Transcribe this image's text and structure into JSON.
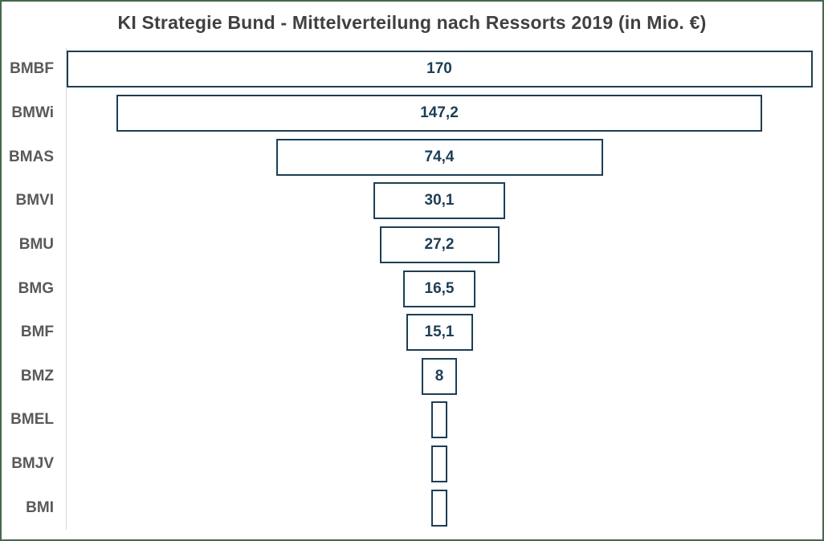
{
  "title": "KI Strategie Bund - Mittelverteilung nach Ressorts 2019 (in Mio. €)",
  "chart_data": {
    "type": "funnel",
    "title": "KI Strategie Bund - Mittelverteilung nach Ressorts 2019 (in Mio. €)",
    "unit": "Mio. €",
    "categories": [
      "BMBF",
      "BMWi",
      "BMAS",
      "BMVI",
      "BMU",
      "BMG",
      "BMF",
      "BMZ",
      "BMEL",
      "BMJV",
      "BMI"
    ],
    "values": [
      170,
      147.2,
      74.4,
      30.1,
      27.2,
      16.5,
      15.1,
      8,
      3.6,
      3.6,
      3.6
    ],
    "data_labels": [
      "170",
      "147,2",
      "74,4",
      "30,1",
      "27,2",
      "16,5",
      "15,1",
      "8",
      "",
      "",
      ""
    ],
    "max_value": 170,
    "legend": "none",
    "grid": false,
    "orientation": "horizontal-centered-funnel"
  },
  "colors": {
    "frame_border": "#45684D",
    "bar_border": "#1D3E55",
    "bar_fill": "#FFFFFF",
    "data_label": "#1D3E55",
    "category_label": "#595959",
    "title": "#404040",
    "axis_line": "#D9D9D9"
  }
}
